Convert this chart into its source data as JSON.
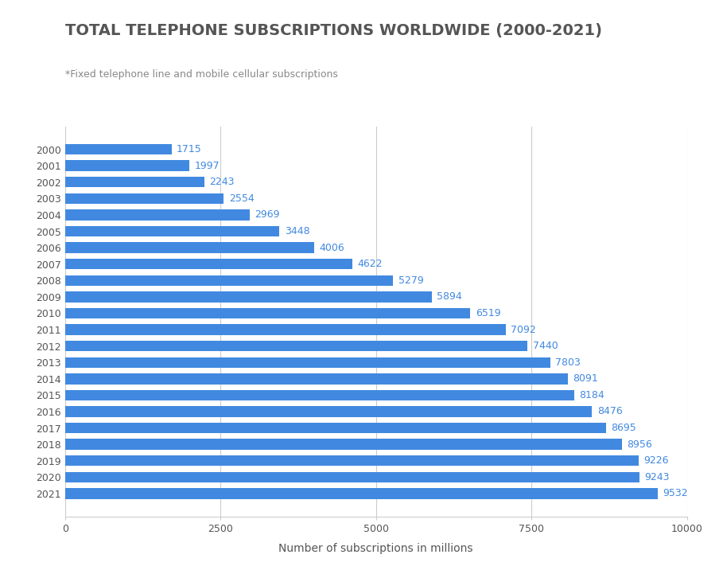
{
  "title": "TOTAL TELEPHONE SUBSCRIPTIONS WORLDWIDE (2000-2021)",
  "subtitle": "*Fixed telephone line and mobile cellular subscriptions",
  "xlabel": "Number of subscriptions in millions",
  "years": [
    "2000",
    "2001",
    "2002",
    "2003",
    "2004",
    "2005",
    "2006",
    "2007",
    "2008",
    "2009",
    "2010",
    "2011",
    "2012",
    "2013",
    "2014",
    "2015",
    "2016",
    "2017",
    "2018",
    "2019",
    "2020",
    "2021"
  ],
  "values": [
    1715,
    1997,
    2243,
    2554,
    2969,
    3448,
    4006,
    4622,
    5279,
    5894,
    6519,
    7092,
    7440,
    7803,
    8091,
    8184,
    8476,
    8695,
    8956,
    9226,
    9243,
    9532
  ],
  "bar_color": "#4189E0",
  "label_color": "#4189E0",
  "title_color": "#555555",
  "subtitle_color": "#888888",
  "xlabel_color": "#555555",
  "tick_color": "#555555",
  "background_color": "#ffffff",
  "xlim": [
    0,
    10000
  ],
  "xticks": [
    0,
    2500,
    5000,
    7500,
    10000
  ],
  "grid_color": "#cccccc",
  "title_fontsize": 14,
  "subtitle_fontsize": 9,
  "label_fontsize": 9,
  "tick_fontsize": 9,
  "xlabel_fontsize": 10,
  "bar_height": 0.65
}
